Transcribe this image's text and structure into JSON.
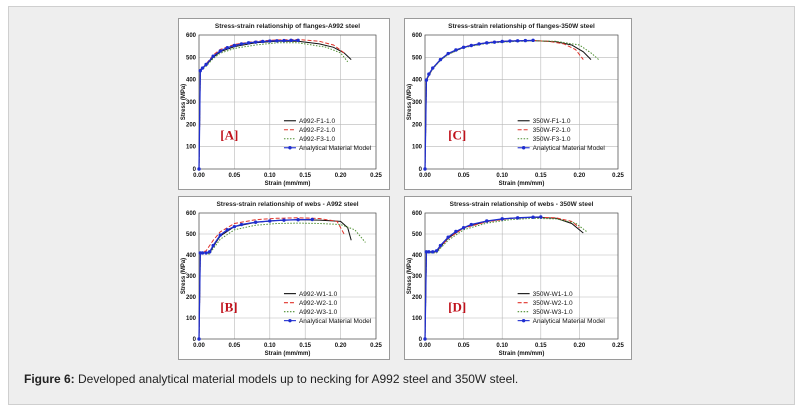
{
  "caption": {
    "label": "Figure 6:",
    "text": " Developed analytical material models up to necking for A992 steel and 350W steel."
  },
  "colors": {
    "black": "#111111",
    "red": "#e0332b",
    "green": "#4e8f32",
    "blue": "#1f2ed0"
  },
  "chart_data": [
    {
      "type": "line",
      "panel_label": "[A]",
      "title": "Stress-strain relationship of flanges-A992 steel",
      "xlabel": "Strain (mm/mm)",
      "ylabel": "Stress (MPa)",
      "xlim": [
        0,
        0.25
      ],
      "ylim": [
        0,
        600
      ],
      "xticks": [
        "0.00",
        "0.05",
        "0.10",
        "0.15",
        "0.20",
        "0.25"
      ],
      "yticks": [
        "0",
        "100",
        "200",
        "300",
        "400",
        "500",
        "600"
      ],
      "legend_position": "bottom-right",
      "series": [
        {
          "name": "A992-F1-1.0",
          "style": "solid",
          "color": "#111111",
          "x": [
            0,
            0.0018,
            0.01,
            0.02,
            0.03,
            0.05,
            0.08,
            0.11,
            0.14,
            0.17,
            0.19,
            0.205,
            0.215
          ],
          "y": [
            0,
            445,
            465,
            500,
            525,
            548,
            565,
            572,
            572,
            560,
            545,
            520,
            490
          ]
        },
        {
          "name": "A992-F2-1.0",
          "style": "dashed",
          "color": "#e0332b",
          "x": [
            0,
            0.0018,
            0.01,
            0.02,
            0.03,
            0.05,
            0.08,
            0.11,
            0.14,
            0.17,
            0.19,
            0.205
          ],
          "y": [
            0,
            440,
            470,
            510,
            535,
            558,
            572,
            578,
            580,
            572,
            555,
            520
          ]
        },
        {
          "name": "A992-F3-1.0",
          "style": "dotted",
          "color": "#4e8f32",
          "x": [
            0,
            0.0018,
            0.01,
            0.02,
            0.03,
            0.05,
            0.08,
            0.11,
            0.14,
            0.16,
            0.18,
            0.2,
            0.21
          ],
          "y": [
            0,
            440,
            460,
            495,
            518,
            540,
            555,
            565,
            565,
            555,
            545,
            520,
            480
          ]
        },
        {
          "name": "Analytical Material Model",
          "style": "marker",
          "color": "#1f2ed0",
          "x": [
            0,
            0.0018,
            0.005,
            0.01,
            0.02,
            0.03,
            0.04,
            0.05,
            0.06,
            0.07,
            0.08,
            0.09,
            0.1,
            0.11,
            0.12,
            0.13,
            0.14
          ],
          "y": [
            0,
            440,
            452,
            468,
            505,
            528,
            543,
            553,
            560,
            565,
            568,
            571,
            573,
            574,
            575,
            576,
            576
          ]
        }
      ]
    },
    {
      "type": "line",
      "panel_label": "[C]",
      "title": "Stress-strain relationship of flanges-350W steel",
      "xlabel": "Strain (mm/mm)",
      "ylabel": "Stress (MPa)",
      "xlim": [
        0,
        0.25
      ],
      "ylim": [
        0,
        600
      ],
      "xticks": [
        "0.00",
        "0.05",
        "0.10",
        "0.15",
        "0.20",
        "0.25"
      ],
      "yticks": [
        "0",
        "100",
        "200",
        "300",
        "400",
        "500",
        "600"
      ],
      "legend_position": "bottom-right",
      "series": [
        {
          "name": "350W-F1-1.0",
          "style": "solid",
          "color": "#111111",
          "x": [
            0,
            0.0018,
            0.01,
            0.02,
            0.03,
            0.05,
            0.08,
            0.11,
            0.14,
            0.17,
            0.19,
            0.205,
            0.215
          ],
          "y": [
            0,
            398,
            450,
            488,
            515,
            545,
            565,
            572,
            575,
            570,
            555,
            525,
            490
          ]
        },
        {
          "name": "350W-F2-1.0",
          "style": "dashed",
          "color": "#e0332b",
          "x": [
            0,
            0.0018,
            0.01,
            0.02,
            0.03,
            0.05,
            0.08,
            0.11,
            0.14,
            0.16,
            0.18,
            0.195,
            0.205
          ],
          "y": [
            0,
            398,
            452,
            490,
            517,
            547,
            567,
            574,
            576,
            572,
            560,
            535,
            490
          ]
        },
        {
          "name": "350W-F3-1.0",
          "style": "dotted",
          "color": "#4e8f32",
          "x": [
            0,
            0.0018,
            0.01,
            0.02,
            0.03,
            0.05,
            0.08,
            0.11,
            0.14,
            0.17,
            0.2,
            0.215,
            0.225
          ],
          "y": [
            0,
            398,
            448,
            486,
            513,
            543,
            563,
            570,
            574,
            572,
            555,
            520,
            490
          ]
        },
        {
          "name": "Analytical Material Model",
          "style": "marker",
          "color": "#1f2ed0",
          "x": [
            0,
            0.0018,
            0.005,
            0.01,
            0.02,
            0.03,
            0.04,
            0.05,
            0.06,
            0.07,
            0.08,
            0.09,
            0.1,
            0.11,
            0.12,
            0.13,
            0.14
          ],
          "y": [
            0,
            398,
            425,
            452,
            490,
            517,
            533,
            545,
            553,
            560,
            565,
            568,
            571,
            573,
            574,
            575,
            576
          ]
        }
      ]
    },
    {
      "type": "line",
      "panel_label": "[B]",
      "title": "Stress-strain relationship of webs - A992 steel",
      "xlabel": "Strain (mm/mm)",
      "ylabel": "Stress (MPa)",
      "xlim": [
        0,
        0.25
      ],
      "ylim": [
        0,
        600
      ],
      "xticks": [
        "0.00",
        "0.05",
        "0.10",
        "0.15",
        "0.20",
        "0.25"
      ],
      "yticks": [
        "0",
        "100",
        "200",
        "300",
        "400",
        "500",
        "600"
      ],
      "legend_position": "bottom-right",
      "series": [
        {
          "name": "A992-W1-1.0",
          "style": "solid",
          "color": "#111111",
          "x": [
            0,
            0.0018,
            0.015,
            0.02,
            0.03,
            0.05,
            0.08,
            0.11,
            0.14,
            0.17,
            0.2,
            0.21,
            0.215
          ],
          "y": [
            0,
            410,
            410,
            440,
            490,
            535,
            555,
            565,
            568,
            566,
            560,
            530,
            470
          ]
        },
        {
          "name": "A992-W2-1.0",
          "style": "dashed",
          "color": "#e0332b",
          "x": [
            0,
            0.0018,
            0.01,
            0.02,
            0.03,
            0.05,
            0.08,
            0.11,
            0.14,
            0.17,
            0.195,
            0.205
          ],
          "y": [
            0,
            410,
            420,
            470,
            510,
            550,
            568,
            575,
            577,
            574,
            560,
            500
          ]
        },
        {
          "name": "A992-W3-1.0",
          "style": "dotted",
          "color": "#4e8f32",
          "x": [
            0,
            0.0018,
            0.015,
            0.02,
            0.03,
            0.05,
            0.08,
            0.11,
            0.14,
            0.17,
            0.2,
            0.22,
            0.235
          ],
          "y": [
            0,
            405,
            405,
            430,
            475,
            520,
            542,
            550,
            552,
            550,
            545,
            520,
            460
          ]
        },
        {
          "name": "Analytical Material Model",
          "style": "marker",
          "color": "#1f2ed0",
          "x": [
            0,
            0.0018,
            0.005,
            0.01,
            0.015,
            0.02,
            0.03,
            0.04,
            0.05,
            0.06,
            0.08,
            0.1,
            0.12,
            0.14,
            0.16
          ],
          "y": [
            0,
            410,
            410,
            410,
            415,
            445,
            495,
            520,
            535,
            545,
            556,
            562,
            566,
            568,
            569
          ]
        }
      ]
    },
    {
      "type": "line",
      "panel_label": "[D]",
      "title": "Stress-strain relationship of webs - 350W steel",
      "xlabel": "Strain (mm/mm)",
      "ylabel": "Stress (MPa)",
      "xlim": [
        0,
        0.25
      ],
      "ylim": [
        0,
        600
      ],
      "xticks": [
        "0.00",
        "0.05",
        "0.10",
        "0.15",
        "0.20",
        "0.25"
      ],
      "yticks": [
        "0",
        "100",
        "200",
        "300",
        "400",
        "500",
        "600"
      ],
      "legend_position": "bottom-right",
      "series": [
        {
          "name": "350W-W1-1.0",
          "style": "solid",
          "color": "#111111",
          "x": [
            0,
            0.0018,
            0.015,
            0.02,
            0.03,
            0.05,
            0.08,
            0.11,
            0.14,
            0.17,
            0.19,
            0.205
          ],
          "y": [
            0,
            415,
            415,
            440,
            480,
            530,
            560,
            575,
            580,
            575,
            550,
            505
          ]
        },
        {
          "name": "350W-W2-1.0",
          "style": "dashed",
          "color": "#e0332b",
          "x": [
            0,
            0.0018,
            0.015,
            0.02,
            0.03,
            0.05,
            0.08,
            0.11,
            0.14,
            0.17,
            0.19,
            0.2
          ],
          "y": [
            0,
            415,
            415,
            438,
            478,
            528,
            558,
            574,
            580,
            577,
            560,
            530
          ]
        },
        {
          "name": "350W-W3-1.0",
          "style": "dotted",
          "color": "#4e8f32",
          "x": [
            0,
            0.0018,
            0.015,
            0.02,
            0.03,
            0.05,
            0.08,
            0.11,
            0.14,
            0.17,
            0.195,
            0.21
          ],
          "y": [
            0,
            410,
            410,
            432,
            470,
            520,
            552,
            568,
            575,
            572,
            552,
            510
          ]
        },
        {
          "name": "Analytical Material Model",
          "style": "marker",
          "color": "#1f2ed0",
          "x": [
            0,
            0.0018,
            0.005,
            0.01,
            0.015,
            0.02,
            0.03,
            0.04,
            0.05,
            0.06,
            0.08,
            0.1,
            0.12,
            0.14,
            0.15
          ],
          "y": [
            0,
            415,
            415,
            415,
            420,
            445,
            485,
            512,
            530,
            545,
            562,
            572,
            577,
            580,
            581
          ]
        }
      ]
    }
  ]
}
